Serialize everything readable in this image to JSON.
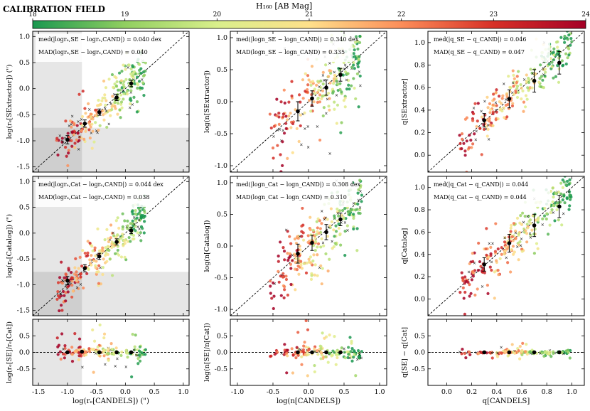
{
  "figure_title": "CALIBRATION FIELD",
  "colorbar": {
    "label": "H₁₆₀ [AB Mag]",
    "min": 18,
    "max": 24,
    "ticks": [
      "18",
      "19",
      "20",
      "21",
      "22",
      "23",
      "24"
    ],
    "colors": [
      "#1a9850",
      "#91cf60",
      "#d9ef8b",
      "#fee08b",
      "#fc8d59",
      "#d73027",
      "#a50026"
    ]
  },
  "chart_data": [
    {
      "id": "re-se",
      "type": "scatter",
      "row": 0,
      "col": 0,
      "ylabel": "log(rₑ[SExtractor]) (\")",
      "xlim": [
        -1.6,
        1.1
      ],
      "ylim": [
        -1.6,
        1.1
      ],
      "xticks": [
        -1.5,
        -1.0,
        -0.5,
        0.0,
        0.5,
        1.0
      ],
      "yticks": [
        -1.5,
        -1.0,
        -0.5,
        0.0,
        0.5,
        1.0
      ],
      "annotation_lines": [
        "med(|logrₑ,SE − logrₑ,CAND|) = 0.040 dex",
        "MAD(logrₑ,SE − logrₑ,CAND) = 0.040"
      ],
      "shade": true,
      "shade_x": -0.75,
      "shade_y": -0.75,
      "binned": {
        "x": [
          -1.0,
          -0.7,
          -0.45,
          -0.15,
          0.1
        ],
        "y": [
          -0.98,
          -0.67,
          -0.45,
          -0.17,
          0.1
        ],
        "err": [
          0.08,
          0.07,
          0.06,
          0.06,
          0.06
        ]
      },
      "cloud": {
        "xmin": -1.2,
        "xmax": 0.35,
        "scatter": 0.22
      }
    },
    {
      "id": "n-se",
      "type": "scatter",
      "row": 0,
      "col": 1,
      "ylabel": "log(n[SExtractor])",
      "xlim": [
        -1.1,
        1.1
      ],
      "ylim": [
        -1.1,
        1.1
      ],
      "xticks": [
        -1.0,
        -0.5,
        0.0,
        0.5,
        1.0
      ],
      "yticks": [
        -1.0,
        -0.5,
        0.0,
        0.5,
        1.0
      ],
      "annotation_lines": [
        "med(|logn_SE − logn_CAND|) = 0.340 dex",
        "MAD(logn_SE − logn_CAND) = 0.335"
      ],
      "shade": false,
      "binned": {
        "x": [
          -0.15,
          0.05,
          0.25,
          0.45
        ],
        "y": [
          -0.15,
          0.05,
          0.22,
          0.42
        ],
        "err": [
          0.15,
          0.12,
          0.12,
          0.1
        ]
      },
      "cloud": {
        "xmin": -0.55,
        "xmax": 0.75,
        "scatter": 0.3
      }
    },
    {
      "id": "q-se",
      "type": "scatter",
      "row": 0,
      "col": 2,
      "ylabel": "q[SExtractor]",
      "xlim": [
        -0.15,
        1.1
      ],
      "ylim": [
        -0.15,
        1.1
      ],
      "xticks": [
        0.0,
        0.2,
        0.4,
        0.6,
        0.8,
        1.0
      ],
      "yticks": [
        0.0,
        0.2,
        0.4,
        0.6,
        0.8,
        1.0
      ],
      "annotation_lines": [
        "med(|q_SE − q_CAND|) = 0.046",
        "MAD(q_SE − q_CAND) = 0.047"
      ],
      "shade": false,
      "binned": {
        "x": [
          0.3,
          0.5,
          0.7,
          0.9
        ],
        "y": [
          0.31,
          0.5,
          0.66,
          0.82
        ],
        "err": [
          0.06,
          0.08,
          0.1,
          0.1
        ]
      },
      "cloud": {
        "xmin": 0.1,
        "xmax": 1.0,
        "scatter": 0.1
      }
    },
    {
      "id": "re-cat",
      "type": "scatter",
      "row": 1,
      "col": 0,
      "ylabel": "log(rₑ[Catalog]) (\")",
      "xlim": [
        -1.6,
        1.1
      ],
      "ylim": [
        -1.6,
        1.1
      ],
      "xticks": [
        -1.5,
        -1.0,
        -0.5,
        0.0,
        0.5,
        1.0
      ],
      "yticks": [
        -1.5,
        -1.0,
        -0.5,
        0.0,
        0.5,
        1.0
      ],
      "annotation_lines": [
        "med(|logrₑ,Cat − logrₑ,CAND|) = 0.044 dex",
        "MAD(logrₑ,Cat − logrₑ,CAND) = 0.038"
      ],
      "shade": true,
      "shade_x": -0.75,
      "shade_y": -0.75,
      "binned": {
        "x": [
          -1.0,
          -0.7,
          -0.45,
          -0.15,
          0.1
        ],
        "y": [
          -0.92,
          -0.68,
          -0.45,
          -0.17,
          0.05
        ],
        "err": [
          0.08,
          0.07,
          0.06,
          0.06,
          0.06
        ]
      },
      "cloud": {
        "xmin": -1.2,
        "xmax": 0.35,
        "scatter": 0.22
      }
    },
    {
      "id": "n-cat",
      "type": "scatter",
      "row": 1,
      "col": 1,
      "ylabel": "log(n[Catalog])",
      "xlim": [
        -1.1,
        1.1
      ],
      "ylim": [
        -1.1,
        1.1
      ],
      "xticks": [
        -1.0,
        -0.5,
        0.0,
        0.5,
        1.0
      ],
      "yticks": [
        -1.0,
        -0.5,
        0.0,
        0.5,
        1.0
      ],
      "annotation_lines": [
        "med(|logn_Cat − logn_CAND|) = 0.308 dex",
        "MAD(logn_Cat − logn_CAND) = 0.310"
      ],
      "shade": false,
      "binned": {
        "x": [
          -0.15,
          0.05,
          0.25,
          0.45
        ],
        "y": [
          -0.12,
          0.05,
          0.22,
          0.42
        ],
        "err": [
          0.15,
          0.12,
          0.12,
          0.1
        ]
      },
      "cloud": {
        "xmin": -0.55,
        "xmax": 0.75,
        "scatter": 0.3
      }
    },
    {
      "id": "q-cat",
      "type": "scatter",
      "row": 1,
      "col": 2,
      "ylabel": "q[Catalog]",
      "xlim": [
        -0.15,
        1.1
      ],
      "ylim": [
        -0.15,
        1.1
      ],
      "xticks": [
        0.0,
        0.2,
        0.4,
        0.6,
        0.8,
        1.0
      ],
      "yticks": [
        0.0,
        0.2,
        0.4,
        0.6,
        0.8,
        1.0
      ],
      "annotation_lines": [
        "med(|q_Cat − q_CAND|) = 0.044",
        "MAD(q_Cat − q_CAND) = 0.044"
      ],
      "shade": false,
      "binned": {
        "x": [
          0.3,
          0.5,
          0.7,
          0.9
        ],
        "y": [
          0.31,
          0.5,
          0.66,
          0.83
        ],
        "err": [
          0.06,
          0.08,
          0.1,
          0.1
        ]
      },
      "cloud": {
        "xmin": 0.1,
        "xmax": 1.0,
        "scatter": 0.1
      }
    },
    {
      "id": "re-diff",
      "type": "scatter",
      "row": 2,
      "col": 0,
      "ylabel": "log(rₑ[SE]/rₑ[Cat])",
      "xlabel": "log(rₑ[CANDELS]) (\")",
      "xlim": [
        -1.6,
        1.1
      ],
      "ylim": [
        -1.0,
        1.0
      ],
      "xticks": [
        -1.5,
        -1.0,
        -0.5,
        0.0,
        0.5,
        1.0
      ],
      "yticks": [
        -0.5,
        0.0,
        0.5
      ],
      "shade": true,
      "shade_x": -0.75,
      "binned": {
        "x": [
          -1.0,
          -0.75,
          -0.45,
          -0.15,
          0.1
        ],
        "y": [
          0.0,
          0.02,
          0.0,
          0.0,
          0.0
        ],
        "err": [
          0.02,
          0.02,
          0.02,
          0.02,
          0.02
        ]
      },
      "cloud": {
        "xmin": -1.2,
        "xmax": 0.35,
        "scatter": 0.2
      }
    },
    {
      "id": "n-diff",
      "type": "scatter",
      "row": 2,
      "col": 1,
      "ylabel": "log(n[SE]/n[Cat])",
      "xlabel": "log(n[CANDELS])",
      "xlim": [
        -1.1,
        1.1
      ],
      "ylim": [
        -1.0,
        1.0
      ],
      "xticks": [
        -1.0,
        -0.5,
        0.0,
        0.5,
        1.0
      ],
      "yticks": [
        -0.5,
        0.0,
        0.5
      ],
      "shade": false,
      "binned": {
        "x": [
          -0.15,
          0.05,
          0.25,
          0.45
        ],
        "y": [
          0.0,
          0.0,
          0.0,
          0.0
        ],
        "err": [
          0.02,
          0.02,
          0.02,
          0.02
        ]
      },
      "cloud": {
        "xmin": -0.55,
        "xmax": 0.75,
        "scatter": 0.2
      }
    },
    {
      "id": "q-diff",
      "type": "scatter",
      "row": 2,
      "col": 2,
      "ylabel": "q[SE] − q[Cat]",
      "xlabel": "q[CANDELS]",
      "xlim": [
        -0.15,
        1.1
      ],
      "ylim": [
        -1.0,
        1.0
      ],
      "xticks": [
        0.0,
        0.2,
        0.4,
        0.6,
        0.8,
        1.0
      ],
      "yticks": [
        -0.5,
        0.0,
        0.5
      ],
      "shade": false,
      "binned": {
        "x": [
          0.3,
          0.5,
          0.7,
          0.9
        ],
        "y": [
          0.0,
          0.0,
          0.0,
          0.0
        ],
        "err": [
          0.02,
          0.02,
          0.02,
          0.02
        ]
      },
      "cloud": {
        "xmin": 0.1,
        "xmax": 1.0,
        "scatter": 0.06
      }
    }
  ]
}
